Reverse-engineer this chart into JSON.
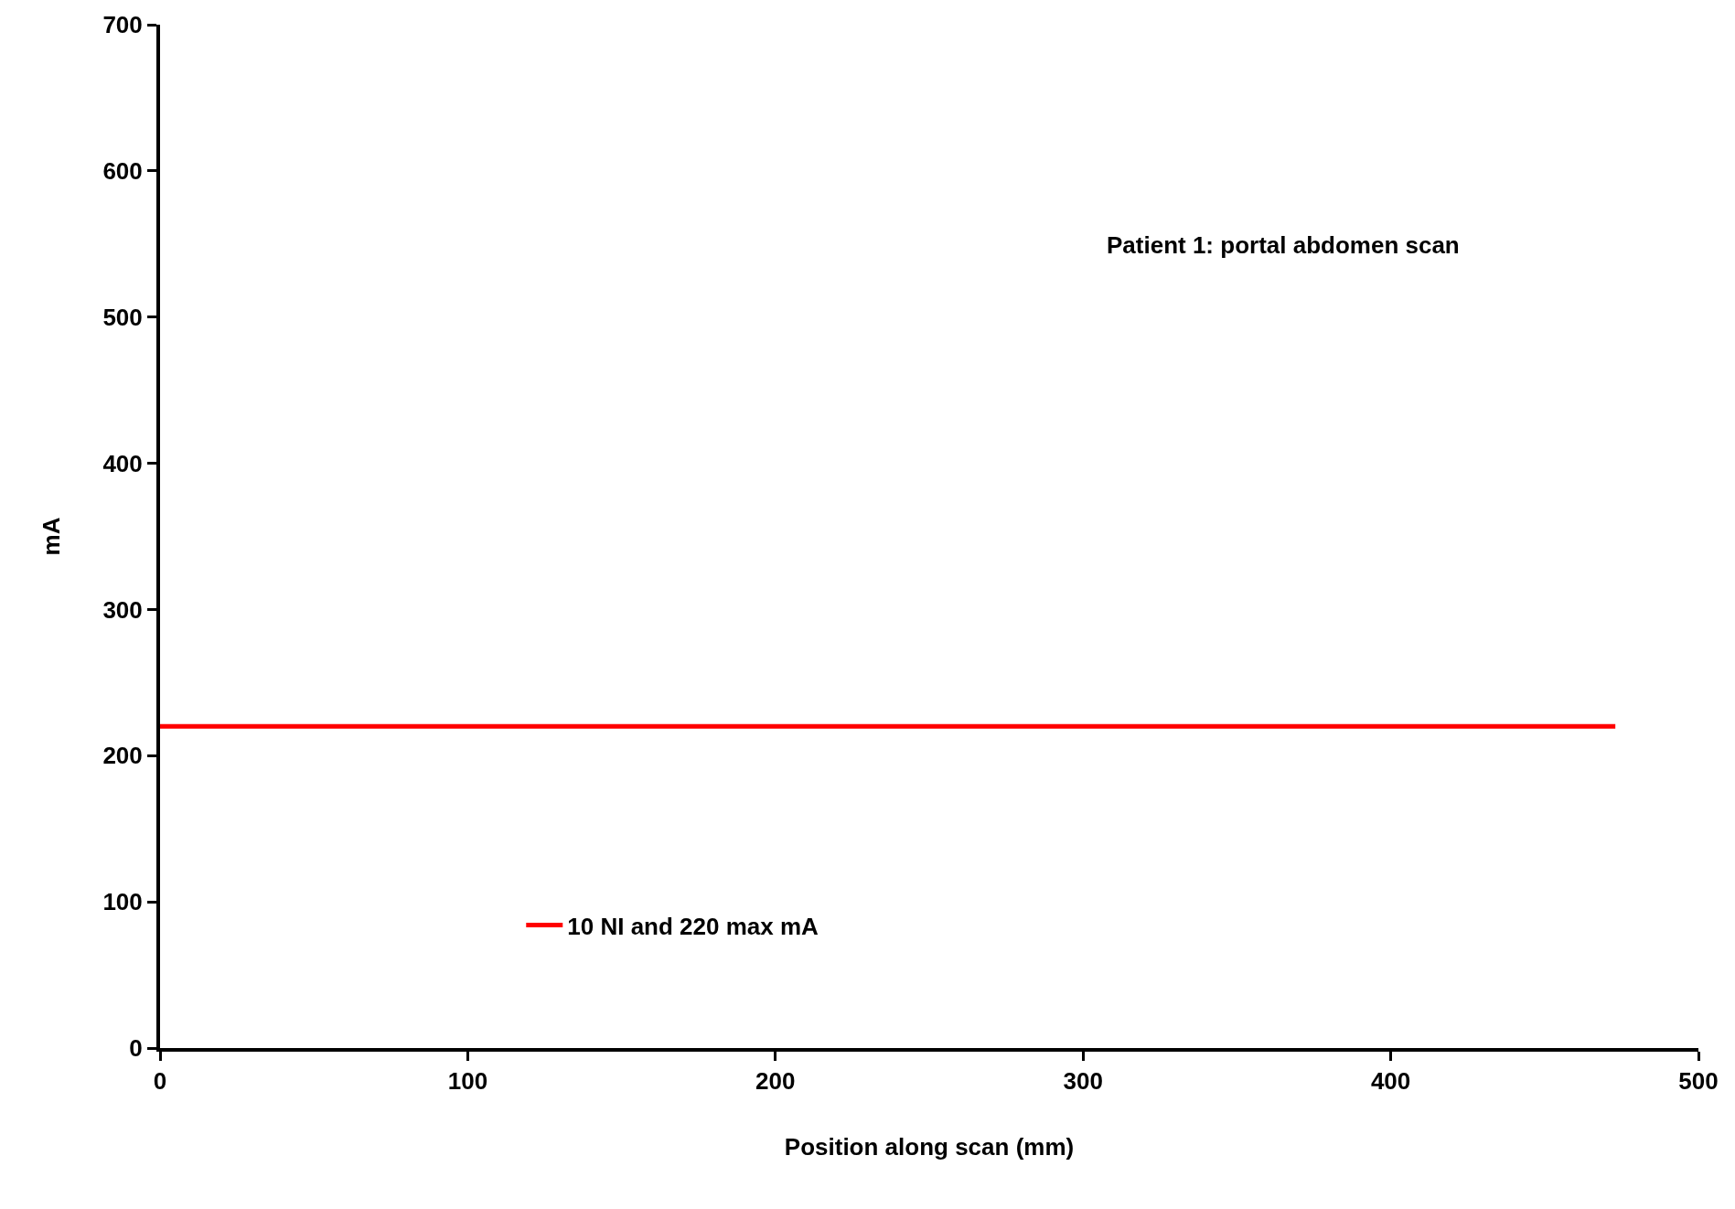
{
  "chart_data": {
    "type": "line",
    "xlabel": "Position along scan (mm)",
    "ylabel": "mA",
    "annotations": [
      "Patient 1: portal abdomen scan"
    ],
    "x": [
      0,
      473
    ],
    "series": [
      {
        "name": "10 NI and 220 max mA",
        "color": "#ff0000",
        "values": [
          220,
          220
        ]
      }
    ],
    "xlim": [
      0,
      500
    ],
    "xticks": [
      0,
      100,
      200,
      300,
      400,
      500
    ],
    "ylim": [
      0,
      700
    ],
    "yticks": [
      0,
      100,
      200,
      300,
      400,
      500,
      600,
      700
    ],
    "legend": "bottom left",
    "marker": "none",
    "line_style": "solid"
  }
}
